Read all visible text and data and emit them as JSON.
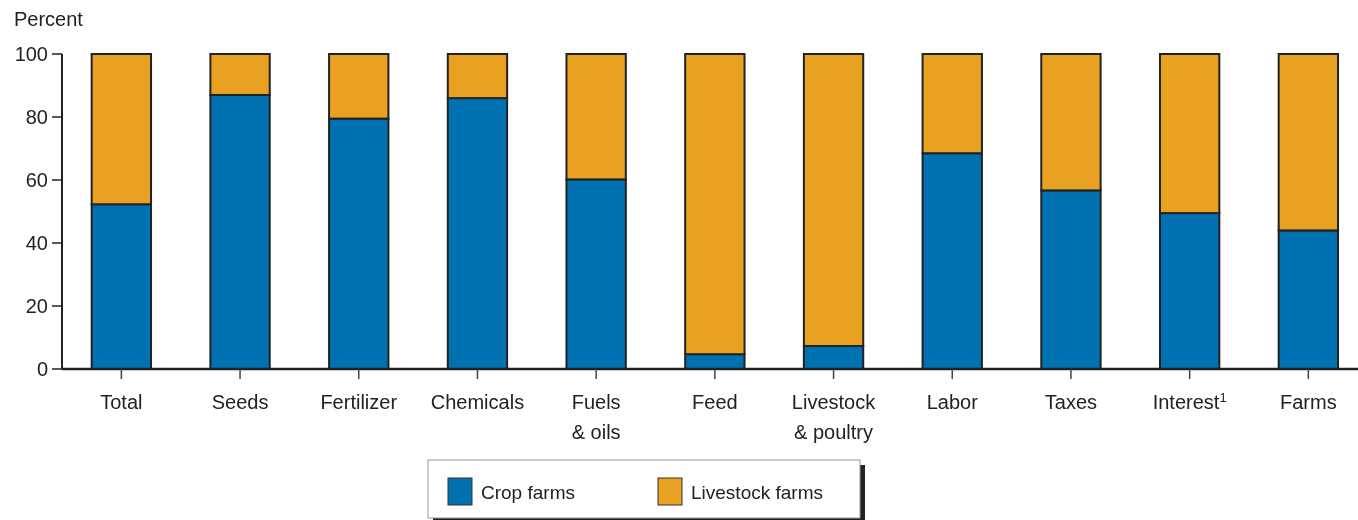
{
  "chart_data": {
    "type": "bar",
    "stacked": true,
    "ylabel": "Percent",
    "categories": [
      "Total",
      "Seeds",
      "Fertilizer",
      "Chemicals",
      "Fuels\n& oils",
      "Feed",
      "Livestock\n& poultry",
      "Labor",
      "Taxes",
      "Interest$^{1}$",
      "Farms"
    ],
    "series": [
      {
        "name": "Crop farms",
        "color": "#0072b2",
        "values": [
          52.3,
          87,
          79.5,
          86,
          60.2,
          4.7,
          7.3,
          68.5,
          56.7,
          49.5,
          44
        ]
      },
      {
        "name": "Livestock farms",
        "color": "#e9a122",
        "values": [
          47.7,
          13,
          20.5,
          14,
          39.8,
          95.3,
          92.7,
          31.5,
          43.3,
          50.5,
          56
        ]
      }
    ],
    "ylim": [
      0,
      100
    ],
    "yticks": [
      0,
      20,
      40,
      60,
      80,
      100
    ],
    "grid": false,
    "legend": "bottom"
  }
}
